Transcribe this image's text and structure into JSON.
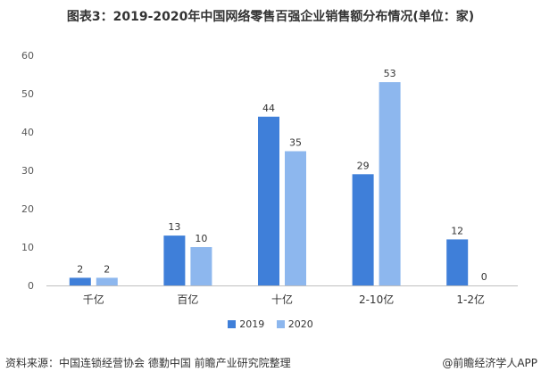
{
  "chart_data": {
    "type": "bar",
    "title": "图表3：2019-2020年中国网络零售百强企业销售额分布情况(单位：家)",
    "categories": [
      "千亿",
      "百亿",
      "十亿",
      "2-10亿",
      "1-2亿"
    ],
    "series": [
      {
        "name": "2019",
        "values": [
          2,
          13,
          44,
          29,
          12
        ],
        "color": "#3f7fd9"
      },
      {
        "name": "2020",
        "values": [
          2,
          10,
          35,
          53,
          0
        ],
        "color": "#8db7ee"
      }
    ],
    "ylim": [
      0,
      60
    ],
    "yticks": [
      0,
      10,
      20,
      30,
      40,
      50,
      60
    ],
    "xlabel": "",
    "ylabel": "",
    "grid": false,
    "legend": "bottom"
  },
  "footer": {
    "source": "资料来源：中国连锁经营协会 德勤中国 前瞻产业研究院整理",
    "credit": "@前瞻经济学人APP"
  }
}
